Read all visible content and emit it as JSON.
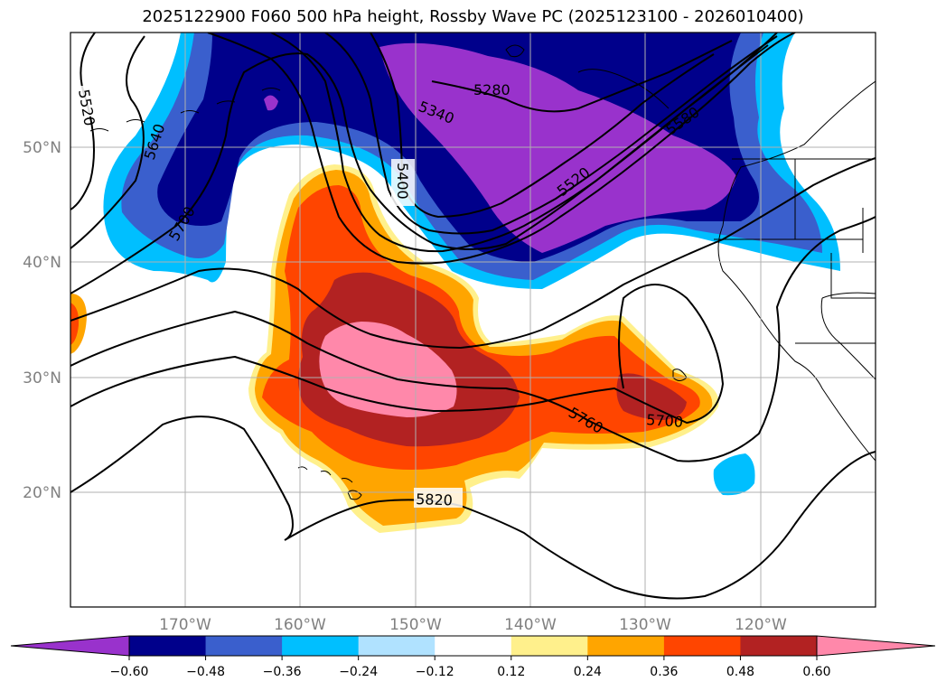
{
  "title": "2025122900 F060 500 hPa height, Rossby Wave PC (2025123100 - 2026010400)",
  "latitude_labels": [
    "50°N",
    "40°N",
    "30°N",
    "20°N"
  ],
  "longitude_labels": [
    "170°W",
    "160°W",
    "150°W",
    "140°W",
    "130°W",
    "120°W"
  ],
  "contour_labels": [
    "5520",
    "5640",
    "5700",
    "5400",
    "5280",
    "5340",
    "5520",
    "5580",
    "5760",
    "5700",
    "5820"
  ],
  "colorbar": {
    "tick_labels": [
      "−0.60",
      "−0.48",
      "−0.36",
      "−0.24",
      "−0.12",
      "0.12",
      "0.24",
      "0.36",
      "0.48",
      "0.60"
    ],
    "colors": [
      "#9932cc",
      "#00008b",
      "#3a5fcd",
      "#00bfff",
      "#b0e2ff",
      "#ffffff",
      "#fff08c",
      "#ffa500",
      "#ff4500",
      "#b22222",
      "#ff88aa"
    ]
  },
  "colors": {
    "shade_neg_060": "#9932cc",
    "shade_neg_048": "#00008b",
    "shade_neg_036": "#3a5fcd",
    "shade_neg_024": "#00bfff",
    "shade_pos_024": "#ffa500",
    "shade_pos_036": "#ff4500",
    "shade_pos_048": "#b22222",
    "shade_pos_060": "#ff88aa",
    "contour": "#000000",
    "gridline": "#b0b0b0"
  }
}
